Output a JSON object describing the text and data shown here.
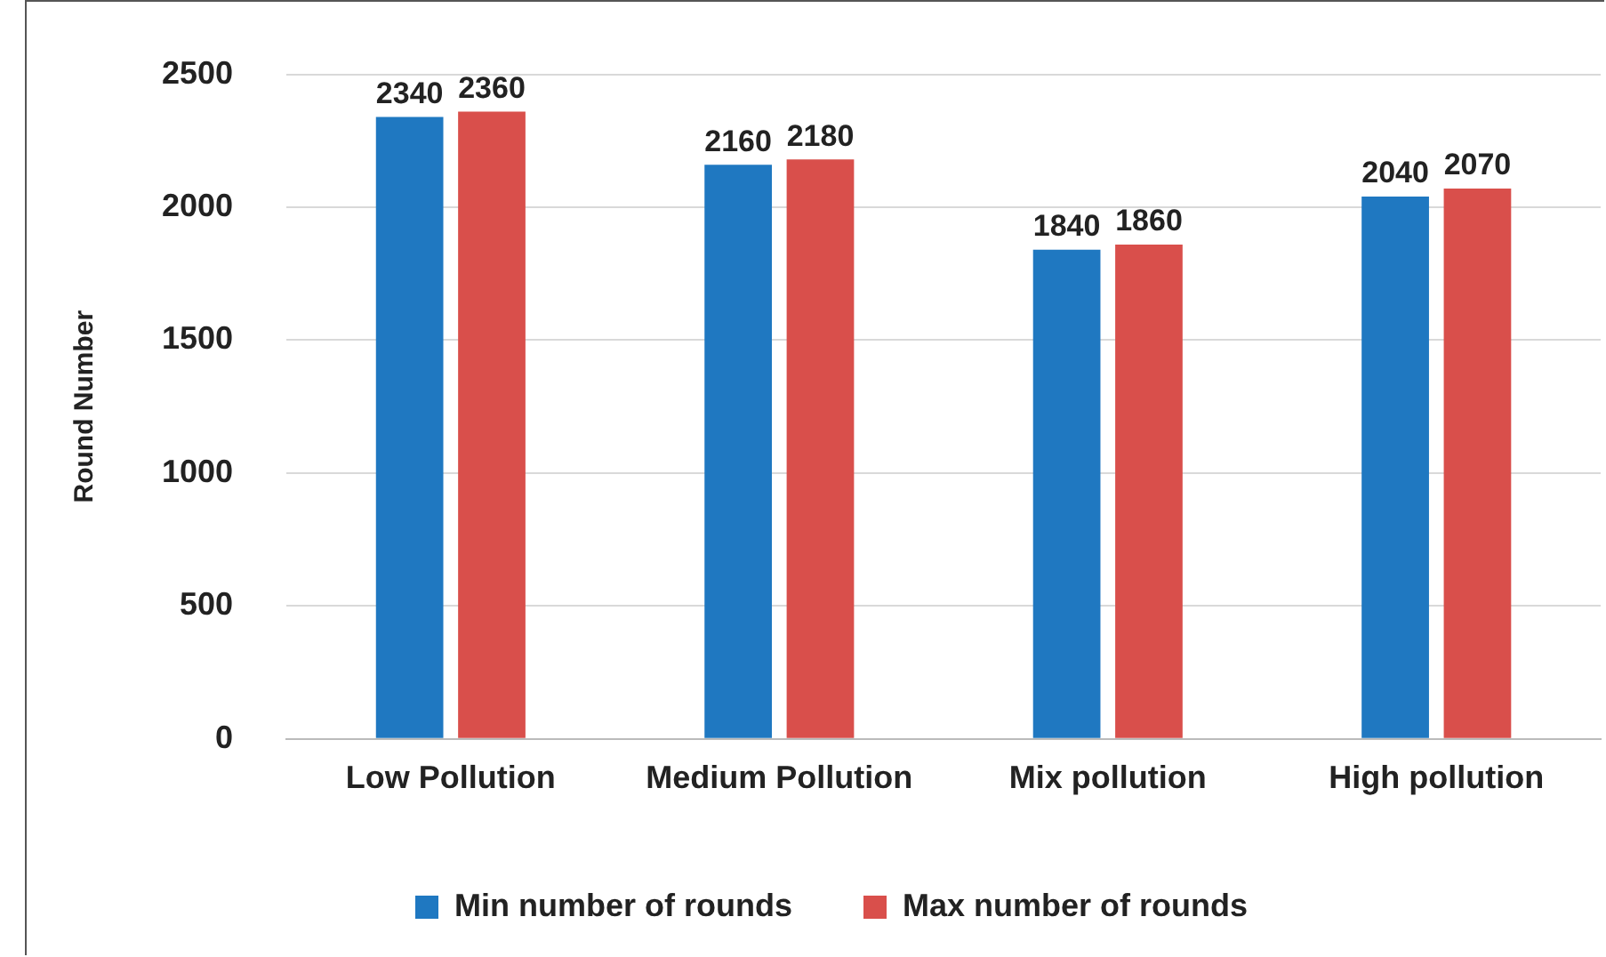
{
  "chart_data": {
    "type": "bar",
    "ylabel": "Round Number",
    "categories": [
      "Low Pollution",
      "Medium Pollution",
      "Mix pollution",
      "High pollution"
    ],
    "series": [
      {
        "name": "Min number of rounds",
        "color": "#1f78c1",
        "values": [
          2340,
          2160,
          1840,
          2040
        ]
      },
      {
        "name": "Max number of rounds",
        "color": "#d94f4b",
        "values": [
          2360,
          2180,
          1860,
          2070
        ]
      }
    ],
    "ylim": [
      0,
      2500
    ],
    "yticks": [
      0,
      500,
      1000,
      1500,
      2000,
      2500
    ],
    "grid": "y",
    "legend": "bottom",
    "data_labels": true
  }
}
